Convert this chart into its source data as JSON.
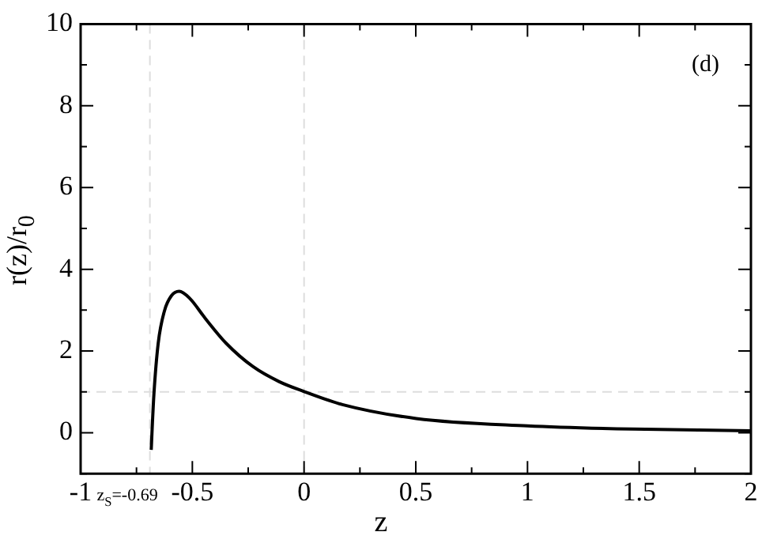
{
  "chart_data": {
    "type": "line",
    "xlabel": "z",
    "ylabel": "r(z)/r$_{0}$",
    "annotations": [
      "(d)"
    ],
    "series": [
      {
        "color": "#000000",
        "x": [
          -0.684,
          -0.679,
          -0.672,
          -0.653,
          -0.625,
          -0.594,
          -0.559,
          -0.512,
          -0.441,
          -0.347,
          -0.229,
          -0.111,
          0.0,
          0.172,
          0.502,
          1.0,
          1.469,
          2.0
        ],
        "values": [
          -0.42,
          0.2,
          0.94,
          2.18,
          2.98,
          3.35,
          3.46,
          3.29,
          2.79,
          2.18,
          1.62,
          1.25,
          1.01,
          0.69,
          0.35,
          0.17,
          0.09,
          0.05
        ]
      }
    ],
    "xlim": [
      -1,
      2
    ],
    "xticks": [
      -1,
      {
        "value": -0.75,
        "label": null
      },
      -0.5,
      {
        "value": -0.25,
        "label": null
      },
      0,
      {
        "value": 0.25,
        "label": null
      },
      0.5,
      {
        "value": 0.75,
        "label": null
      },
      1,
      {
        "value": 1.25,
        "label": null
      },
      1.5,
      {
        "value": 1.75,
        "label": null
      },
      2
    ],
    "ylim": [
      -1,
      10
    ],
    "yticks": [
      {
        "value": -1,
        "label": null
      },
      0,
      {
        "value": 1,
        "label": null
      },
      2,
      {
        "value": 3,
        "label": null
      },
      4,
      {
        "value": 5,
        "label": null
      },
      6,
      {
        "value": 7,
        "label": null
      },
      8,
      {
        "value": 9,
        "label": null
      },
      10
    ],
    "ref_lines": [
      {
        "axis": "x",
        "value": -0.69,
        "label": "z$_{S}$=-0.69",
        "color": "#dddddd",
        "line_style": "dashed"
      },
      {
        "axis": "x",
        "value": 0,
        "color": "#dddddd",
        "line_style": "dashed"
      },
      {
        "axis": "y",
        "value": 1,
        "color": "#dddddd",
        "line_style": "dashed"
      }
    ],
    "grid": false,
    "legend": false,
    "marker": "none",
    "line_style": "solid"
  }
}
